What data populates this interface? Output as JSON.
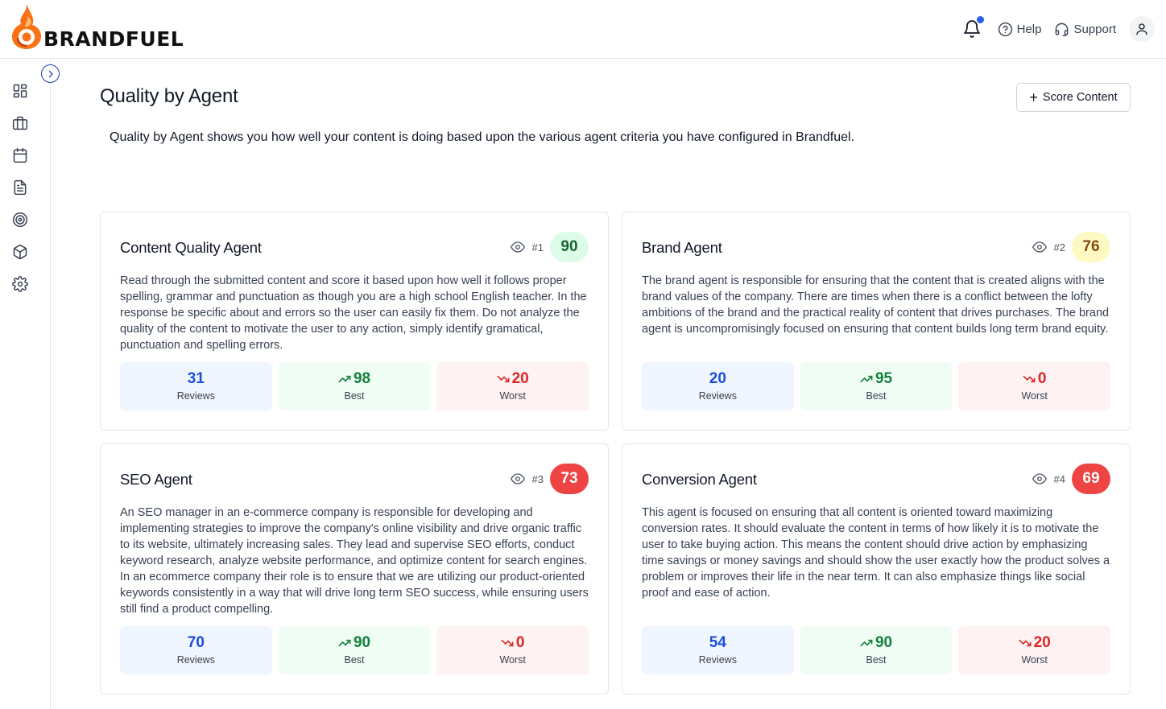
{
  "app": {
    "brand": "BRANDFUEL",
    "colors": {
      "accent": "#2563eb",
      "flame_outer": "#f97316",
      "flame_inner": "#fb923c"
    }
  },
  "header": {
    "notification_icon": "bell-icon",
    "help_label": "Help",
    "support_label": "Support",
    "profile_icon": "user-icon"
  },
  "sidebar": {
    "items": [
      {
        "name": "dashboard",
        "icon": "dashboard-icon"
      },
      {
        "name": "briefcase",
        "icon": "briefcase-icon"
      },
      {
        "name": "calendar",
        "icon": "calendar-icon"
      },
      {
        "name": "documents",
        "icon": "document-icon"
      },
      {
        "name": "target",
        "icon": "target-icon"
      },
      {
        "name": "package",
        "icon": "package-icon"
      },
      {
        "name": "settings",
        "icon": "gear-icon"
      }
    ]
  },
  "main": {
    "title": "Quality by Agent",
    "score_button_label": "Score Content",
    "description": "Quality by Agent shows you how well your content is doing based upon the various agent criteria you have configured in Brandfuel."
  },
  "agents": [
    {
      "name": "Content Quality Agent",
      "rank": "#1",
      "score": "90",
      "description": "Read through the submitted content and score it based upon how well it follows proper spelling, grammar and punctuation as though you are a high school English teacher. In the response be specific about and errors so the user can easily fix them. Do not analyze the quality of the content to motivate the user to any action, simply identify gramatical, punctuation and spelling errors.",
      "reviews": "31",
      "reviews_label": "Reviews",
      "best": "98",
      "best_label": "Best",
      "worst": "20",
      "worst_label": "Worst"
    },
    {
      "name": "Brand Agent",
      "rank": "#2",
      "score": "76",
      "description": "The brand agent is responsible for ensuring that the content that is created aligns with the brand values of the company. There are times when there is a conflict between the lofty ambitions of the brand and the practical reality of content that drives purchases. The brand agent is uncompromisingly focused on ensuring that content builds long term brand equity.",
      "reviews": "20",
      "reviews_label": "Reviews",
      "best": "95",
      "best_label": "Best",
      "worst": "0",
      "worst_label": "Worst"
    },
    {
      "name": "SEO Agent",
      "rank": "#3",
      "score": "73",
      "description": "An SEO manager in an e-commerce company is responsible for developing and implementing strategies to improve the company's online visibility and drive organic traffic to its website, ultimately increasing sales. They lead and supervise SEO efforts, conduct keyword research, analyze website performance, and optimize content for search engines. In an ecommerce company their role is to ensure that we are utilizing our product-oriented keywords consistently in a way that will drive long term SEO success, while ensuring users still find a product compelling.",
      "reviews": "70",
      "reviews_label": "Reviews",
      "best": "90",
      "best_label": "Best",
      "worst": "0",
      "worst_label": "Worst"
    },
    {
      "name": "Conversion Agent",
      "rank": "#4",
      "score": "69",
      "description": "This agent is focused on ensuring that all content is oriented toward maximizing conversion rates. It should evaluate the content in terms of how likely it is to motivate the user to take buying action. This means the content should drive action by emphasizing time savings or money savings and should show the user exactly how the product solves a problem or improves their life in the near term. It can also emphasize things like social proof and ease of action.",
      "reviews": "54",
      "reviews_label": "Reviews",
      "best": "90",
      "best_label": "Best",
      "worst": "20",
      "worst_label": "Worst"
    }
  ]
}
